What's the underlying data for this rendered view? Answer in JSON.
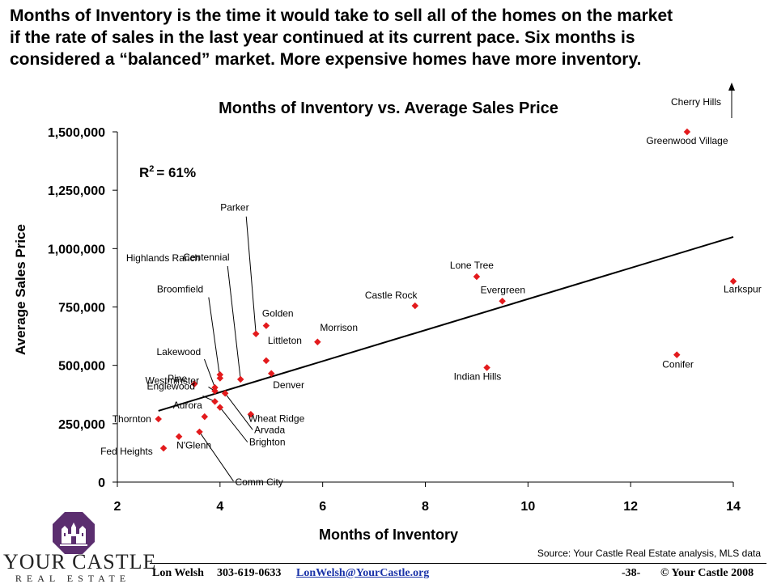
{
  "headline": [
    "Months of Inventory is the time it would take to sell all of the homes on the market",
    "if the rate of sales in the last year continued at its current pace.  Six months is",
    "considered a “balanced” market.  More expensive homes have more inventory."
  ],
  "chart_data": {
    "type": "scatter",
    "title": "Months of Inventory vs. Average Sales Price",
    "xlabel": "Months of Inventory",
    "ylabel": "Average Sales Price",
    "xlim": [
      2,
      14
    ],
    "ylim": [
      0,
      1500000
    ],
    "xticks": [
      2,
      4,
      6,
      8,
      10,
      12,
      14
    ],
    "yticks": [
      0,
      250000,
      500000,
      750000,
      1000000,
      1250000,
      1500000
    ],
    "ytick_labels": [
      "0",
      "250,000",
      "500,000",
      "750,000",
      "1,000,000",
      "1,250,000",
      "1,500,000"
    ],
    "r2_label": "R",
    "r2_sup": "2",
    "r2_value": "= 61%",
    "trendline": {
      "x": [
        2.8,
        14
      ],
      "y": [
        305000,
        1050000
      ]
    },
    "marker_color": "#e31a1c",
    "offchart_label": "Cherry Hills",
    "points": [
      {
        "name": "Greenwood Village",
        "x": 13.1,
        "y": 1500000
      },
      {
        "name": "Larkspur",
        "x": 14.0,
        "y": 860000
      },
      {
        "name": "Lone Tree",
        "x": 9.0,
        "y": 880000
      },
      {
        "name": "Evergreen",
        "x": 9.5,
        "y": 775000
      },
      {
        "name": "Castle Rock",
        "x": 7.8,
        "y": 755000
      },
      {
        "name": "Conifer",
        "x": 12.9,
        "y": 545000
      },
      {
        "name": "Indian Hills",
        "x": 9.2,
        "y": 490000
      },
      {
        "name": "Morrison",
        "x": 5.9,
        "y": 600000
      },
      {
        "name": "Golden",
        "x": 4.9,
        "y": 670000
      },
      {
        "name": "Parker",
        "x": 4.7,
        "y": 635000
      },
      {
        "name": "Littleton",
        "x": 4.9,
        "y": 520000
      },
      {
        "name": "Denver",
        "x": 5.0,
        "y": 465000
      },
      {
        "name": "Centennial",
        "x": 4.4,
        "y": 440000
      },
      {
        "name": "Highlands Ranch",
        "x": 4.0,
        "y": 460000
      },
      {
        "name": "Broomfield",
        "x": 4.0,
        "y": 445000
      },
      {
        "name": "Lakewood",
        "x": 3.9,
        "y": 405000
      },
      {
        "name": "Westminster",
        "x": 3.9,
        "y": 390000
      },
      {
        "name": "Englewood",
        "x": 3.9,
        "y": 345000
      },
      {
        "name": "Pine",
        "x": 3.5,
        "y": 420000
      },
      {
        "name": "Arvada",
        "x": 4.1,
        "y": 380000
      },
      {
        "name": "Brighton",
        "x": 4.0,
        "y": 320000
      },
      {
        "name": "Wheat Ridge",
        "x": 4.6,
        "y": 290000
      },
      {
        "name": "Aurora",
        "x": 3.7,
        "y": 280000
      },
      {
        "name": "Thornton",
        "x": 2.8,
        "y": 270000
      },
      {
        "name": "Comm City",
        "x": 3.6,
        "y": 215000
      },
      {
        "name": "N'Glenn",
        "x": 3.2,
        "y": 195000
      },
      {
        "name": "Fed Heights",
        "x": 2.9,
        "y": 145000
      }
    ]
  },
  "source": "Source:  Your Castle Real Estate analysis, MLS data",
  "footer": {
    "name": "Lon Welsh",
    "phone": "303-619-0633",
    "email": "LonWelsh@YourCastle.org",
    "page": "-38-",
    "copyright": "© Your Castle 2008"
  },
  "logo": {
    "name": "YOUR CASTLE",
    "sub": "REAL ESTATE",
    "color": "#5b2e6f"
  }
}
